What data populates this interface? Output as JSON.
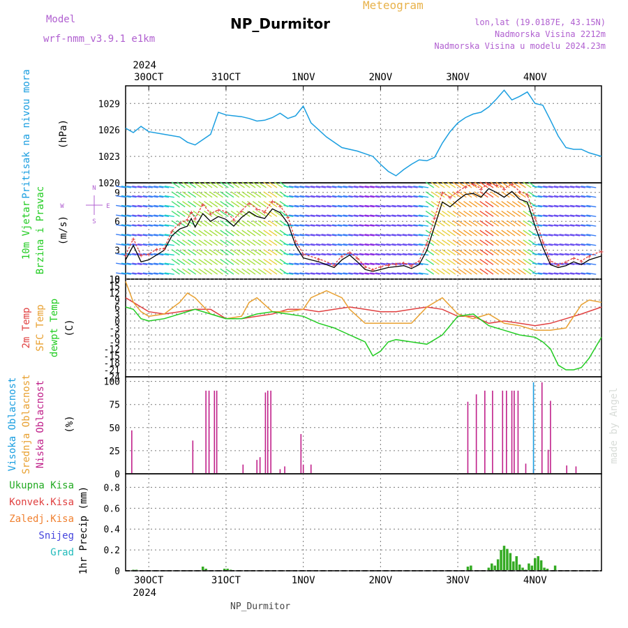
{
  "header": {
    "model_label": "Model",
    "model_name": "wrf-nmm_v3.9.1  e1km",
    "title": "NP_Durmitor",
    "meteogram": "Meteogram",
    "location": "lon,lat (19.0187E, 43.15N)",
    "altitude": "Nadmorska Visina 2212m",
    "model_altitude": "Nadmorska Visina u modelu 2024.23m",
    "footer": "NP_Durmitor",
    "credit": "made by Angel",
    "colors": {
      "model": "#b05fd0",
      "meteogram": "#e8b24a",
      "location": "#b05fd0"
    }
  },
  "time_axis": {
    "year": "2024",
    "labels": [
      "30OCT",
      "31OCT",
      "1NOV",
      "2NOV",
      "3NOV",
      "4NOV"
    ],
    "day_start": 29.7,
    "day_end": 35.86
  },
  "chart_data": [
    {
      "type": "line",
      "id": "pressure",
      "ylabel_title": "Pritisak na nivou mora",
      "ylabel": "(hPa)",
      "yticks": [
        "1020",
        "1023",
        "1026",
        "1029"
      ],
      "ylim": [
        1020,
        1031
      ],
      "color": "#1a9ee0",
      "series": [
        {
          "name": "Pritisak na nivou mora",
          "x": [
            29.7,
            29.8,
            29.9,
            30.0,
            30.2,
            30.4,
            30.5,
            30.6,
            30.65,
            30.8,
            30.9,
            31.0,
            31.1,
            31.2,
            31.3,
            31.4,
            31.5,
            31.6,
            31.7,
            31.8,
            31.9,
            32.0,
            32.1,
            32.3,
            32.5,
            32.7,
            32.9,
            33.0,
            33.1,
            33.2,
            33.3,
            33.4,
            33.5,
            33.6,
            33.7,
            33.8,
            33.9,
            34.0,
            34.1,
            34.2,
            34.3,
            34.4,
            34.5,
            34.6,
            34.7,
            34.8,
            34.9,
            35.0,
            35.1,
            35.2,
            35.3,
            35.4,
            35.5,
            35.6,
            35.7,
            35.86
          ],
          "values": [
            1026.2,
            1025.7,
            1026.4,
            1025.8,
            1025.5,
            1025.2,
            1024.6,
            1024.3,
            1024.6,
            1025.5,
            1028.0,
            1027.7,
            1027.6,
            1027.5,
            1027.3,
            1027.0,
            1027.1,
            1027.4,
            1027.9,
            1027.3,
            1027.6,
            1028.7,
            1026.8,
            1025.2,
            1024.0,
            1023.6,
            1023.0,
            1022.1,
            1021.3,
            1020.8,
            1021.5,
            1022.1,
            1022.6,
            1022.5,
            1022.9,
            1024.5,
            1025.8,
            1026.8,
            1027.4,
            1027.8,
            1028.0,
            1028.6,
            1029.5,
            1030.5,
            1029.4,
            1029.8,
            1030.3,
            1029.0,
            1028.8,
            1027.1,
            1025.3,
            1024.0,
            1023.8,
            1023.8,
            1023.4,
            1023.0
          ]
        }
      ]
    },
    {
      "type": "line",
      "id": "wind",
      "ylabel_title": "10m Vjetar",
      "ylabel_sub": "Brzina i Pravac",
      "ylabel": "(m/s)",
      "yticks": [
        "0",
        "3",
        "6",
        "9"
      ],
      "ylim": [
        0,
        10
      ],
      "compass": {
        "n": "N",
        "s": "S",
        "w": "W",
        "e": "E"
      },
      "series": [
        {
          "name": "10m Vjetar",
          "color": "#000000",
          "x": [
            29.7,
            29.8,
            29.9,
            30.0,
            30.1,
            30.2,
            30.3,
            30.4,
            30.5,
            30.55,
            30.6,
            30.7,
            30.8,
            30.9,
            31.0,
            31.1,
            31.2,
            31.3,
            31.4,
            31.5,
            31.6,
            31.7,
            31.8,
            31.9,
            32.0,
            32.2,
            32.4,
            32.5,
            32.6,
            32.7,
            32.8,
            32.9,
            33.0,
            33.1,
            33.2,
            33.3,
            33.4,
            33.5,
            33.6,
            33.7,
            33.8,
            33.9,
            34.0,
            34.1,
            34.2,
            34.3,
            34.4,
            34.5,
            34.6,
            34.7,
            34.8,
            34.9,
            35.0,
            35.1,
            35.2,
            35.3,
            35.4,
            35.5,
            35.6,
            35.7,
            35.86
          ],
          "values": [
            2.0,
            3.5,
            1.8,
            2.0,
            2.5,
            3.0,
            4.5,
            5.2,
            5.5,
            6.3,
            5.4,
            6.8,
            6.0,
            6.5,
            6.2,
            5.5,
            6.4,
            7.0,
            6.5,
            6.3,
            7.3,
            6.9,
            5.8,
            3.5,
            2.2,
            1.8,
            1.2,
            2.0,
            2.5,
            1.8,
            1.0,
            0.8,
            1.0,
            1.2,
            1.3,
            1.4,
            1.1,
            1.5,
            3.0,
            5.5,
            8.0,
            7.5,
            8.2,
            8.8,
            8.9,
            8.5,
            9.4,
            9.0,
            8.5,
            9.1,
            8.3,
            8.0,
            5.5,
            3.3,
            1.5,
            1.2,
            1.4,
            1.8,
            1.5,
            2.0,
            2.4
          ]
        },
        {
          "name": "Brzina i Pravac",
          "color": "#e04040",
          "x": [
            29.7,
            29.8,
            29.9,
            30.0,
            30.1,
            30.2,
            30.3,
            30.4,
            30.5,
            30.55,
            30.6,
            30.7,
            30.8,
            30.9,
            31.0,
            31.1,
            31.2,
            31.3,
            31.4,
            31.5,
            31.6,
            31.7,
            31.8,
            31.9,
            32.0,
            32.2,
            32.4,
            32.5,
            32.6,
            32.7,
            32.8,
            32.9,
            33.0,
            33.1,
            33.2,
            33.3,
            33.4,
            33.5,
            33.6,
            33.7,
            33.8,
            33.9,
            34.0,
            34.1,
            34.2,
            34.3,
            34.4,
            34.5,
            34.6,
            34.7,
            34.8,
            34.9,
            35.0,
            35.1,
            35.2,
            35.3,
            35.4,
            35.5,
            35.6,
            35.7,
            35.86
          ],
          "values": [
            2.5,
            4.2,
            2.5,
            2.6,
            3.1,
            3.2,
            5.0,
            5.8,
            6.2,
            7.0,
            6.3,
            7.8,
            6.8,
            7.2,
            7.0,
            6.2,
            7.1,
            7.9,
            7.3,
            7.0,
            8.1,
            7.6,
            6.5,
            4.0,
            2.6,
            2.1,
            1.5,
            2.4,
            2.8,
            2.2,
            1.3,
            1.0,
            1.3,
            1.5,
            1.6,
            1.7,
            1.4,
            1.9,
            3.7,
            6.4,
            9.0,
            8.5,
            9.1,
            9.6,
            9.9,
            9.4,
            9.9,
            9.8,
            9.4,
            9.9,
            9.1,
            8.8,
            6.4,
            3.9,
            1.9,
            1.5,
            1.8,
            2.2,
            1.9,
            2.4,
            2.9
          ]
        }
      ]
    },
    {
      "type": "line",
      "id": "temperature",
      "ylabel_title": "2m Temp",
      "ylabel_sub": "SFC Temp",
      "ylabel_sub2": "dewpt Temp",
      "ylabel": "(C)",
      "yticks": [
        "-24",
        "-21",
        "-18",
        "-15",
        "-12",
        "-9",
        "-6",
        "-3",
        "0",
        "3",
        "6",
        "9",
        "12",
        "15",
        "18"
      ],
      "ylim": [
        -24,
        18
      ],
      "series": [
        {
          "name": "2m Temp",
          "color": "#e04040",
          "x": [
            29.7,
            29.8,
            29.9,
            30.0,
            30.2,
            30.4,
            30.6,
            30.8,
            31.0,
            31.2,
            31.4,
            31.6,
            31.8,
            32.0,
            32.2,
            32.4,
            32.6,
            32.8,
            33.0,
            33.2,
            33.4,
            33.6,
            33.8,
            34.0,
            34.2,
            34.4,
            34.6,
            34.8,
            35.0,
            35.2,
            35.4,
            35.6,
            35.86
          ],
          "values": [
            10,
            8,
            6,
            4,
            3,
            4,
            5,
            5,
            1,
            1,
            2,
            3,
            5,
            5,
            4,
            5,
            6,
            5,
            4,
            4,
            5,
            6,
            5,
            2,
            2,
            -1,
            0,
            -1,
            -2,
            -1,
            1,
            3,
            6
          ]
        },
        {
          "name": "SFC Temp",
          "color": "#e8a030",
          "x": [
            29.7,
            29.8,
            29.9,
            30.0,
            30.2,
            30.4,
            30.5,
            30.6,
            30.8,
            31.0,
            31.2,
            31.3,
            31.4,
            31.5,
            31.6,
            31.8,
            32.0,
            32.1,
            32.3,
            32.5,
            32.6,
            32.8,
            33.0,
            33.2,
            33.4,
            33.6,
            33.8,
            34.0,
            34.2,
            34.4,
            34.6,
            34.8,
            35.0,
            35.2,
            35.4,
            35.6,
            35.7,
            35.86
          ],
          "values": [
            17,
            8,
            4,
            2,
            3,
            8,
            12,
            10,
            3,
            1,
            2,
            8,
            10,
            7,
            4,
            4,
            5,
            10,
            13,
            10,
            5,
            -1,
            -1,
            -1,
            -1,
            6,
            10,
            3,
            1,
            3,
            -1,
            -2,
            -4,
            -4,
            -3,
            7,
            9,
            8
          ]
        },
        {
          "name": "dewpt Temp",
          "color": "#22cc22",
          "x": [
            29.7,
            29.8,
            29.9,
            30.0,
            30.2,
            30.4,
            30.6,
            30.8,
            31.0,
            31.2,
            31.4,
            31.6,
            31.8,
            32.0,
            32.2,
            32.4,
            32.6,
            32.8,
            32.9,
            33.0,
            33.1,
            33.2,
            33.4,
            33.6,
            33.8,
            34.0,
            34.2,
            34.4,
            34.6,
            34.8,
            35.0,
            35.1,
            35.2,
            35.3,
            35.4,
            35.5,
            35.6,
            35.7,
            35.86
          ],
          "values": [
            6,
            5,
            1,
            0,
            1,
            3,
            5,
            3,
            1,
            1,
            3,
            4,
            3,
            2,
            -1,
            -3,
            -6,
            -9,
            -15,
            -13,
            -9,
            -8,
            -9,
            -10,
            -6,
            2,
            3,
            -2,
            -4,
            -6,
            -7,
            -9,
            -12,
            -19,
            -21,
            -21,
            -20,
            -16,
            -7
          ]
        }
      ]
    },
    {
      "type": "bar",
      "id": "cloud",
      "ylabel_title": "Visoka Oblacnost",
      "ylabel_sub": "Srednja Oblacnost",
      "ylabel_sub2": "Niska Oblacnost",
      "ylabel": "(%)",
      "yticks": [
        "0",
        "25",
        "50",
        "75",
        "100"
      ],
      "ylim": [
        0,
        105
      ],
      "series": [
        {
          "name": "Niska Oblacnost",
          "color": "#c0208a",
          "x": [
            29.78,
            30.57,
            30.74,
            30.78,
            30.85,
            30.88,
            31.22,
            31.4,
            31.44,
            31.51,
            31.54,
            31.58,
            31.7,
            31.76,
            31.97,
            32.0,
            32.1,
            34.13,
            34.24,
            34.35,
            34.45,
            34.58,
            34.63,
            34.7,
            34.73,
            34.78,
            34.88,
            34.98,
            35.09,
            35.17,
            35.2,
            35.41,
            35.53
          ],
          "values": [
            47,
            36,
            90,
            90,
            90,
            90,
            10,
            15,
            18,
            88,
            90,
            90,
            5,
            8,
            43,
            10,
            10,
            78,
            86,
            90,
            90,
            90,
            90,
            90,
            90,
            90,
            11,
            5,
            99,
            26,
            79,
            9,
            8
          ]
        },
        {
          "name": "Visoka Oblacnost",
          "color": "#1a9ee0",
          "x": [
            34.98
          ],
          "values": [
            99
          ]
        }
      ]
    },
    {
      "type": "bar",
      "id": "precip",
      "ylabel": "1hr Precip (mm)",
      "yticks": [
        "0",
        "0.2",
        "0.4",
        "0.6",
        "0.8"
      ],
      "ylim": [
        0,
        0.93
      ],
      "legend": [
        {
          "name": "Ukupna Kisa",
          "color": "#22aa22"
        },
        {
          "name": "Konvek.Kisa",
          "color": "#e04040"
        },
        {
          "name": "Zaledj.Kisa",
          "color": "#f08030"
        },
        {
          "name": "Snijeg",
          "color": "#4444dd"
        },
        {
          "name": "Grad",
          "color": "#22bbbb"
        }
      ],
      "series": [
        {
          "name": "Ukupna Kisa",
          "color": "#33aa22",
          "x": [
            29.8,
            29.84,
            30.7,
            30.74,
            30.98,
            31.02,
            31.06,
            34.13,
            34.17,
            34.4,
            34.44,
            34.48,
            34.52,
            34.56,
            34.6,
            34.64,
            34.68,
            34.72,
            34.76,
            34.8,
            34.84,
            34.88,
            34.92,
            34.96,
            35.0,
            35.04,
            35.08,
            35.12,
            35.16,
            35.26
          ],
          "values": [
            0.01,
            0.01,
            0.04,
            0.02,
            0.02,
            0.02,
            0.01,
            0.04,
            0.05,
            0.03,
            0.07,
            0.05,
            0.11,
            0.2,
            0.24,
            0.21,
            0.17,
            0.09,
            0.14,
            0.06,
            0.03,
            0.01,
            0.07,
            0.05,
            0.12,
            0.14,
            0.1,
            0.03,
            0.02,
            0.05
          ]
        }
      ]
    }
  ]
}
